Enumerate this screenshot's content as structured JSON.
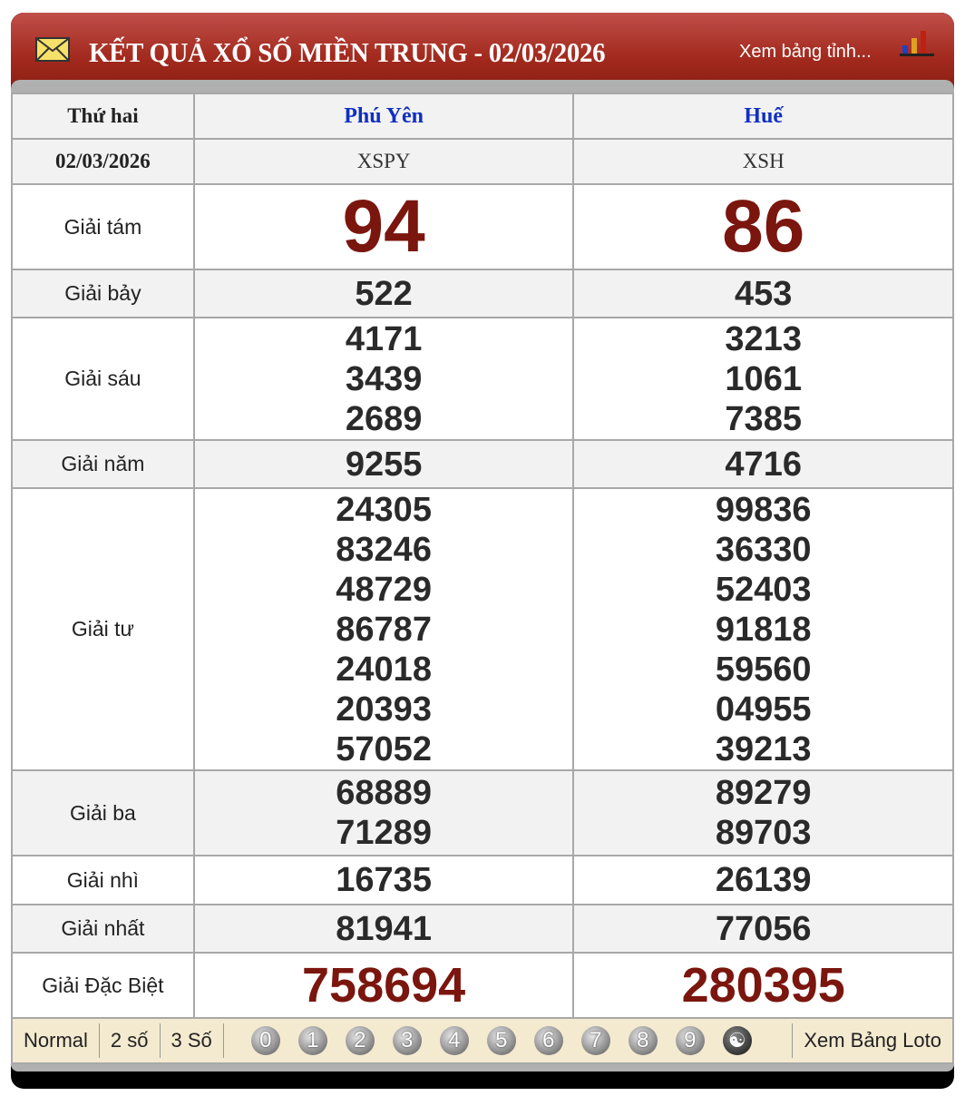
{
  "header": {
    "title": "KẾT QUẢ XỔ SỐ MIỀN TRUNG - 02/03/2026",
    "link": "Xem bảng tỉnh...",
    "icons": [
      "envelope-icon",
      "bar-chart-icon"
    ]
  },
  "table": {
    "day": "Thứ hai",
    "date": "02/03/2026",
    "provinces": [
      {
        "name": "Phú Yên",
        "code": "XSPY"
      },
      {
        "name": "Huế",
        "code": "XSH"
      }
    ],
    "prizes": [
      {
        "label": "Giải tám",
        "values": [
          [
            "94"
          ],
          [
            "86"
          ]
        ]
      },
      {
        "label": "Giải bảy",
        "values": [
          [
            "522"
          ],
          [
            "453"
          ]
        ]
      },
      {
        "label": "Giải sáu",
        "values": [
          [
            "4171",
            "3439",
            "2689"
          ],
          [
            "3213",
            "1061",
            "7385"
          ]
        ]
      },
      {
        "label": "Giải năm",
        "values": [
          [
            "9255"
          ],
          [
            "4716"
          ]
        ]
      },
      {
        "label": "Giải tư",
        "values": [
          [
            "24305",
            "83246",
            "48729",
            "86787",
            "24018",
            "20393",
            "57052"
          ],
          [
            "99836",
            "36330",
            "52403",
            "91818",
            "59560",
            "04955",
            "39213"
          ]
        ]
      },
      {
        "label": "Giải ba",
        "values": [
          [
            "68889",
            "71289"
          ],
          [
            "89279",
            "89703"
          ]
        ]
      },
      {
        "label": "Giải nhì",
        "values": [
          [
            "16735"
          ],
          [
            "26139"
          ]
        ]
      },
      {
        "label": "Giải nhất",
        "values": [
          [
            "81941"
          ],
          [
            "77056"
          ]
        ]
      },
      {
        "label": "Giải Đặc Biệt",
        "values": [
          [
            "758694"
          ],
          [
            "280395"
          ]
        ]
      }
    ]
  },
  "footer": {
    "modes": [
      "Normal",
      "2 số",
      "3 Số"
    ],
    "digits": [
      "0",
      "1",
      "2",
      "3",
      "4",
      "5",
      "6",
      "7",
      "8",
      "9"
    ],
    "yinyang": "☯",
    "loto_link": "Xem Bảng Loto"
  },
  "colors": {
    "header_red": "#a32a1e",
    "prize_red": "#7a160e",
    "province_blue": "#1030c0",
    "footer_bg": "#f4ead0"
  }
}
